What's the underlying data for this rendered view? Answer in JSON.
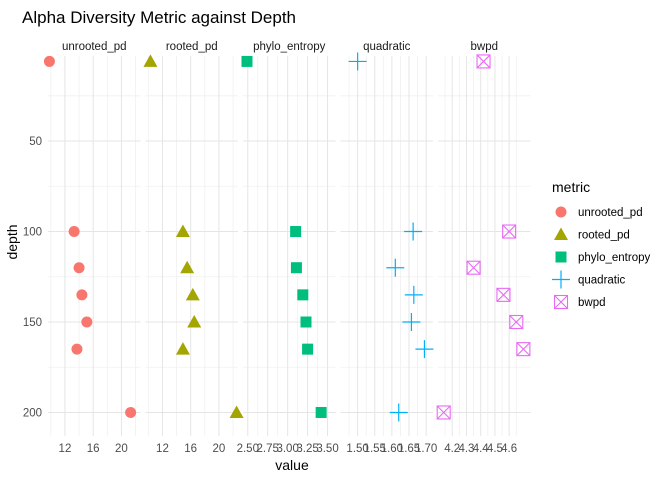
{
  "chart_data": {
    "type": "scatter",
    "title": "Alpha Diversity Metric against Depth",
    "xlabel": "value",
    "ylabel": "depth",
    "y_reversed": true,
    "ylim": [
      3,
      213
    ],
    "yticks": [
      50,
      100,
      150,
      200
    ],
    "grid": true,
    "legend_title": "metric",
    "legend_position": "right",
    "panels": [
      {
        "name": "unrooted_pd",
        "color": "#F8766D",
        "shape": "circle",
        "xlim": [
          9.6,
          22.7
        ],
        "xticks": [
          {
            "v": 12,
            "label": "12"
          },
          {
            "v": 16,
            "label": "16"
          },
          {
            "v": 20,
            "label": "20"
          }
        ],
        "points": [
          {
            "x": 9.8,
            "y": 6
          },
          {
            "x": 13.3,
            "y": 100
          },
          {
            "x": 14.0,
            "y": 120
          },
          {
            "x": 14.4,
            "y": 135
          },
          {
            "x": 15.1,
            "y": 150
          },
          {
            "x": 13.7,
            "y": 165
          },
          {
            "x": 21.3,
            "y": 200
          }
        ]
      },
      {
        "name": "rooted_pd",
        "color": "#A3A500",
        "shape": "triangle",
        "xlim": [
          9.6,
          22.7
        ],
        "xticks": [
          {
            "v": 12,
            "label": "12"
          },
          {
            "v": 16,
            "label": "16"
          },
          {
            "v": 20,
            "label": "20"
          }
        ],
        "points": [
          {
            "x": 10.3,
            "y": 6
          },
          {
            "x": 14.9,
            "y": 100
          },
          {
            "x": 15.5,
            "y": 120
          },
          {
            "x": 16.3,
            "y": 135
          },
          {
            "x": 16.5,
            "y": 150
          },
          {
            "x": 14.9,
            "y": 165
          },
          {
            "x": 22.5,
            "y": 200
          }
        ]
      },
      {
        "name": "phylo_entropy",
        "color": "#00BF7D",
        "shape": "square",
        "xlim": [
          2.44,
          3.6
        ],
        "xticks": [
          {
            "v": 2.5,
            "label": "2.50"
          },
          {
            "v": 2.75,
            "label": "2.75"
          },
          {
            "v": 3.0,
            "label": "3.00"
          },
          {
            "v": 3.25,
            "label": "3.25"
          },
          {
            "v": 3.5,
            "label": "3.50"
          }
        ],
        "points": [
          {
            "x": 2.49,
            "y": 6
          },
          {
            "x": 3.1,
            "y": 100
          },
          {
            "x": 3.11,
            "y": 120
          },
          {
            "x": 3.19,
            "y": 135
          },
          {
            "x": 3.23,
            "y": 150
          },
          {
            "x": 3.25,
            "y": 165
          },
          {
            "x": 3.42,
            "y": 200
          }
        ]
      },
      {
        "name": "quadratic",
        "color": "#00B0F6",
        "shape": "plus",
        "xlim": [
          1.45,
          1.72
        ],
        "xticks": [
          {
            "v": 1.5,
            "label": "1.50"
          },
          {
            "v": 1.55,
            "label": "1.55"
          },
          {
            "v": 1.6,
            "label": "1.60"
          },
          {
            "v": 1.65,
            "label": "1.65"
          },
          {
            "v": 1.7,
            "label": "1.70"
          }
        ],
        "points": [
          {
            "x": 1.5,
            "y": 6
          },
          {
            "x": 1.662,
            "y": 100
          },
          {
            "x": 1.61,
            "y": 120
          },
          {
            "x": 1.664,
            "y": 135
          },
          {
            "x": 1.657,
            "y": 150
          },
          {
            "x": 1.695,
            "y": 165
          },
          {
            "x": 1.62,
            "y": 200
          }
        ]
      },
      {
        "name": "bwpd",
        "color": "#E76BF3",
        "shape": "square-x",
        "xlim": [
          4.1,
          4.75
        ],
        "xticks": [
          {
            "v": 4.2,
            "label": "4.2"
          },
          {
            "v": 4.3,
            "label": "4.3"
          },
          {
            "v": 4.4,
            "label": "4.4"
          },
          {
            "v": 4.5,
            "label": "4.5"
          },
          {
            "v": 4.6,
            "label": "4.6"
          }
        ],
        "points": [
          {
            "x": 4.42,
            "y": 6
          },
          {
            "x": 4.6,
            "y": 100
          },
          {
            "x": 4.35,
            "y": 120
          },
          {
            "x": 4.56,
            "y": 135
          },
          {
            "x": 4.65,
            "y": 150
          },
          {
            "x": 4.7,
            "y": 165
          },
          {
            "x": 4.14,
            "y": 200
          }
        ]
      }
    ]
  }
}
